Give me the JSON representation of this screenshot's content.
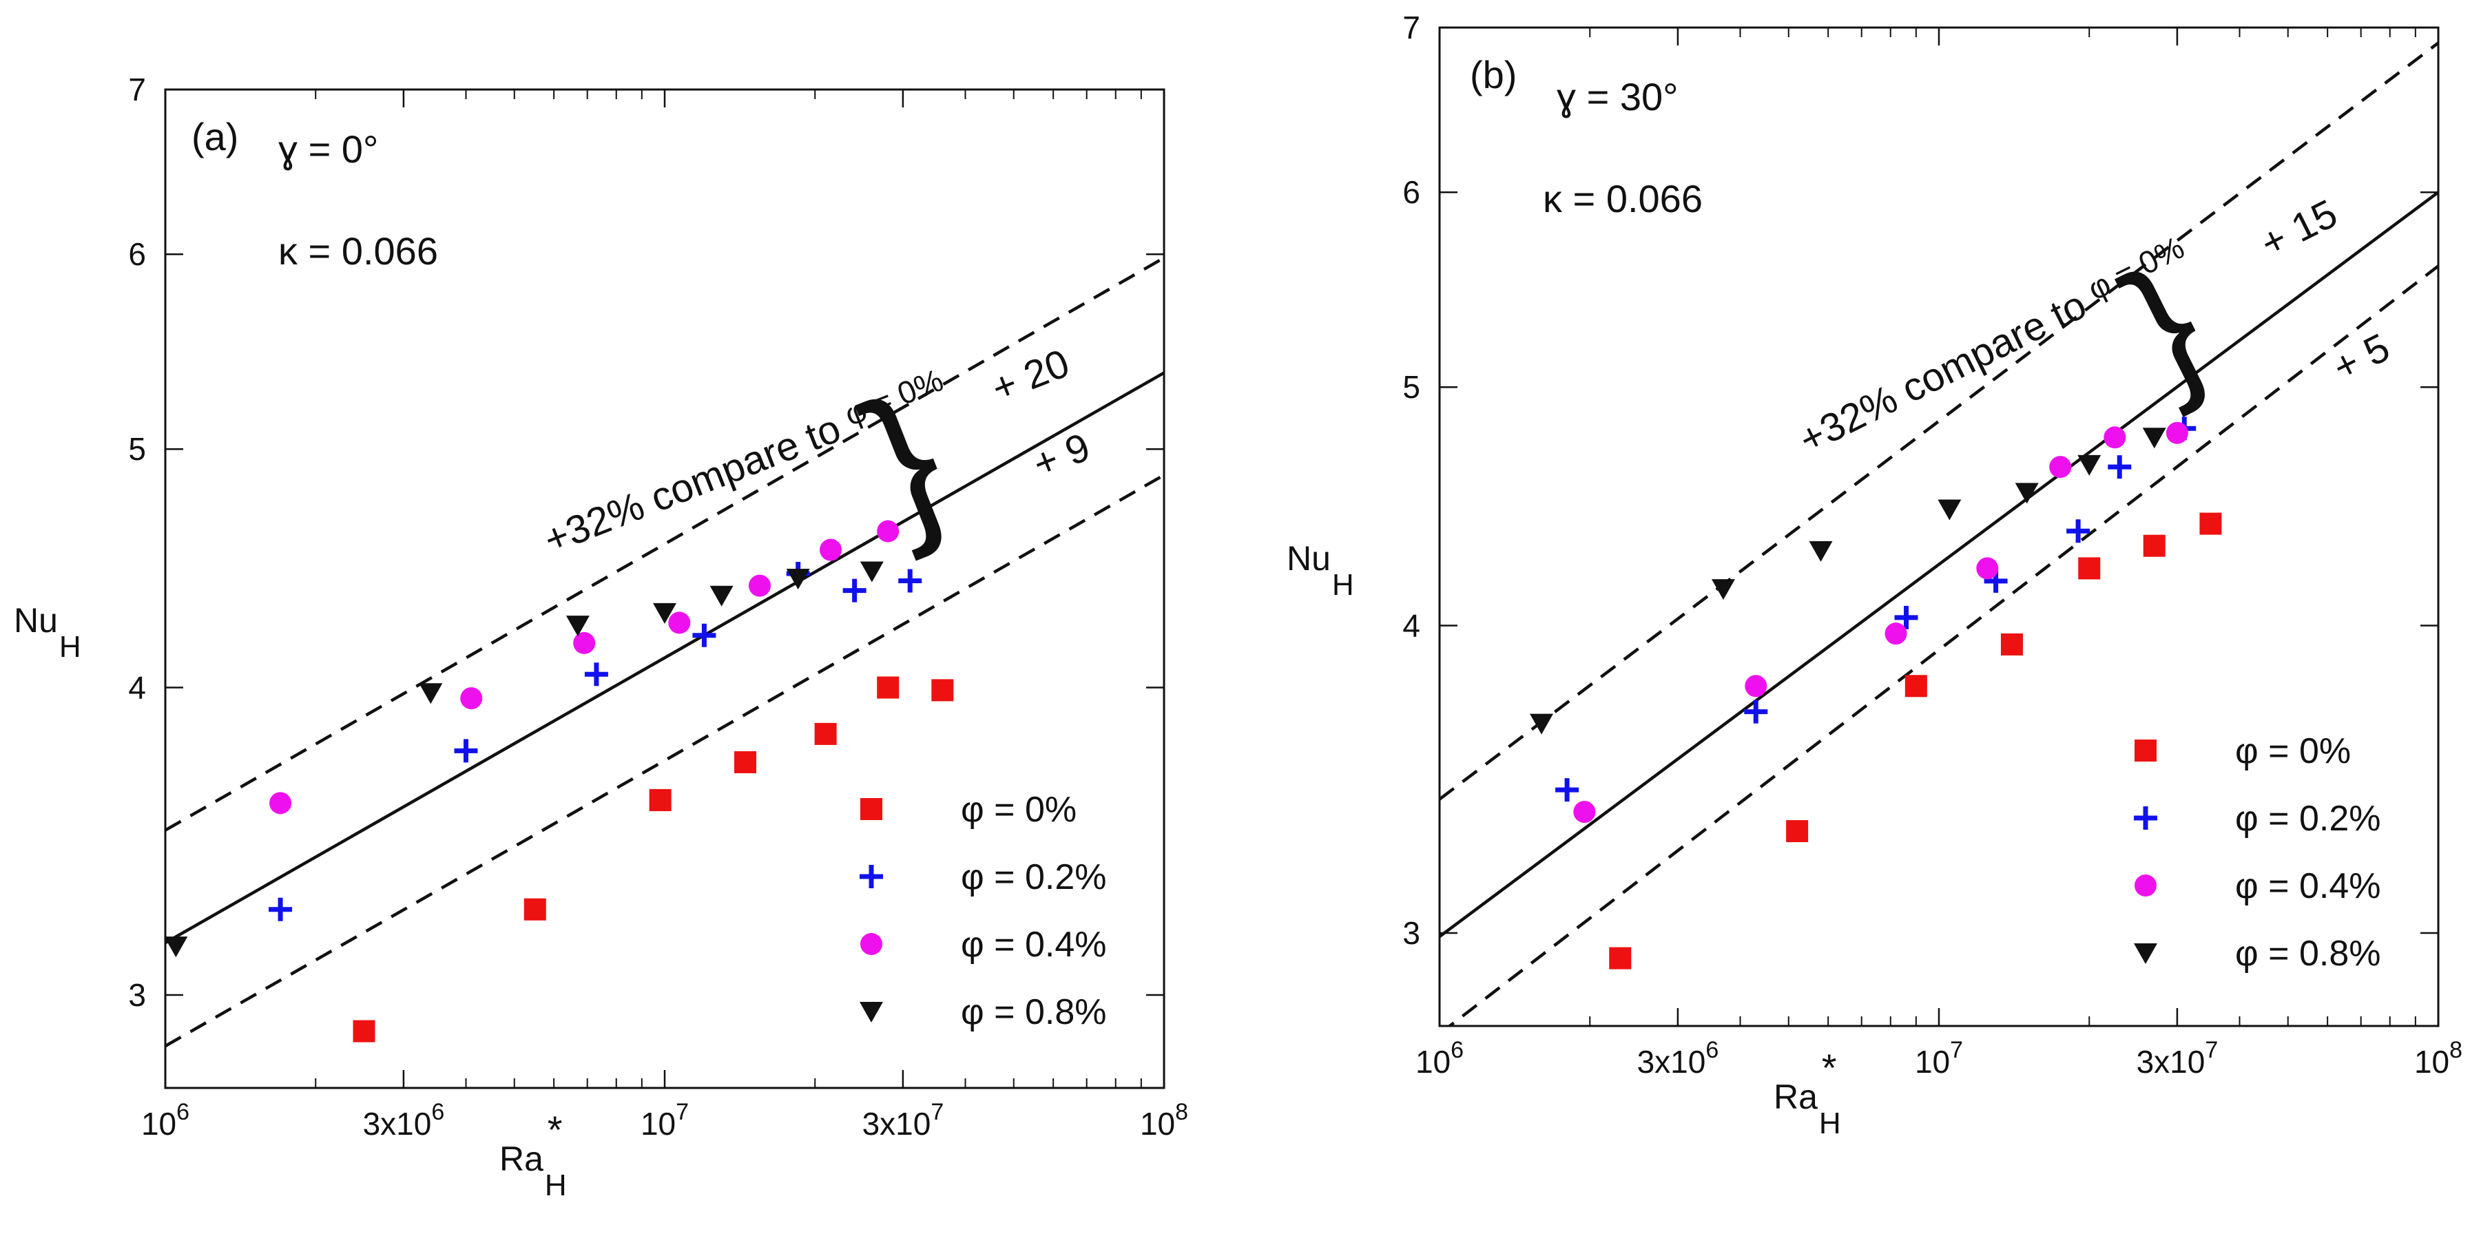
{
  "colors": {
    "phi_0": "#ee1111",
    "phi_0_2": "#1111ee",
    "phi_0_4": "#ee11ee",
    "phi_0_8": "#111111",
    "axes": "#111111"
  },
  "chart_data": [
    {
      "type": "scatter",
      "panel_label": "(a)",
      "angle_label": "ɣ = 0°",
      "kappa_label": "κ = 0.066",
      "xlabel": "Ra",
      "xlabel_sub": "H",
      "xlabel_sup": "*",
      "ylabel": "Nu",
      "ylabel_sub": "H",
      "x_scale": "log",
      "y_scale": "log",
      "xlim": [
        1000000,
        100000000
      ],
      "ylim": [
        2.75,
        7
      ],
      "x_ticks": [
        {
          "value": 1000000,
          "base": "10",
          "exp": "6"
        },
        {
          "value": 3000000,
          "base": "3x10",
          "exp": "6"
        },
        {
          "value": 10000000,
          "base": "10",
          "exp": "7"
        },
        {
          "value": 30000000,
          "base": "3x10",
          "exp": "7"
        },
        {
          "value": 100000000,
          "base": "10",
          "exp": "8"
        }
      ],
      "y_ticks": [
        {
          "value": 3,
          "label": "3"
        },
        {
          "value": 4,
          "label": "4"
        },
        {
          "value": 5,
          "label": "5"
        },
        {
          "value": 6,
          "label": "6"
        },
        {
          "value": 7,
          "label": "7"
        }
      ],
      "series": [
        {
          "name": "φ = 0%",
          "marker": "square",
          "color_key": "phi_0",
          "points": [
            [
              2500000,
              2.9
            ],
            [
              5500000,
              3.25
            ],
            [
              9800000,
              3.6
            ],
            [
              14500000,
              3.73
            ],
            [
              21000000,
              3.83
            ],
            [
              28000000,
              4.0
            ],
            [
              36000000,
              3.99
            ]
          ]
        },
        {
          "name": "φ = 0.2%",
          "marker": "plus",
          "color_key": "phi_0_2",
          "points": [
            [
              1700000,
              3.25
            ],
            [
              4000000,
              3.77
            ],
            [
              7300000,
              4.05
            ],
            [
              12000000,
              4.2
            ],
            [
              18500000,
              4.45
            ],
            [
              24000000,
              4.38
            ],
            [
              31000000,
              4.42
            ]
          ]
        },
        {
          "name": "φ = 0.4%",
          "marker": "circle",
          "color_key": "phi_0_4",
          "points": [
            [
              1700000,
              3.59
            ],
            [
              4100000,
              3.96
            ],
            [
              6900000,
              4.17
            ],
            [
              10700000,
              4.25
            ],
            [
              15500000,
              4.4
            ],
            [
              21500000,
              4.55
            ],
            [
              28000000,
              4.63
            ]
          ]
        },
        {
          "name": "φ = 0.8%",
          "marker": "triangle-down",
          "color_key": "phi_0_8",
          "points": [
            [
              1050000,
              3.14
            ],
            [
              3400000,
              3.98
            ],
            [
              6700000,
              4.24
            ],
            [
              10000000,
              4.29
            ],
            [
              13000000,
              4.36
            ],
            [
              18500000,
              4.43
            ],
            [
              26000000,
              4.46
            ]
          ]
        }
      ],
      "fit_lines": [
        {
          "name": "fit",
          "style": "solid",
          "x": [
            1000000,
            100000000
          ],
          "y": [
            3.15,
            5.37
          ]
        },
        {
          "name": "upper bound",
          "style": "dashed",
          "x": [
            1000000,
            100000000
          ],
          "y": [
            3.5,
            5.98
          ]
        },
        {
          "name": "lower bound",
          "style": "dashed",
          "x": [
            1000000,
            100000000
          ],
          "y": [
            2.86,
            4.88
          ]
        }
      ],
      "annotations": {
        "upper_prefix": "+32% compare to ",
        "upper_suffix": "φ = 0%",
        "plus_top": "+ 20",
        "plus_bottom": "+ 9"
      },
      "legend": {
        "position": "bottom-right",
        "entries": [
          "φ = 0%",
          "φ = 0.2%",
          "φ = 0.4%",
          "φ = 0.8%"
        ]
      }
    },
    {
      "type": "scatter",
      "panel_label": "(b)",
      "angle_label": "ɣ = 30°",
      "kappa_label": "κ = 0.066",
      "xlabel": "Ra",
      "xlabel_sub": "H",
      "xlabel_sup": "*",
      "ylabel": "Nu",
      "ylabel_sub": "H",
      "x_scale": "log",
      "y_scale": "log",
      "xlim": [
        1000000,
        100000000
      ],
      "ylim": [
        2.75,
        7
      ],
      "x_ticks": [
        {
          "value": 1000000,
          "base": "10",
          "exp": "6"
        },
        {
          "value": 3000000,
          "base": "3x10",
          "exp": "6"
        },
        {
          "value": 10000000,
          "base": "10",
          "exp": "7"
        },
        {
          "value": 30000000,
          "base": "3x10",
          "exp": "7"
        },
        {
          "value": 100000000,
          "base": "10",
          "exp": "8"
        }
      ],
      "y_ticks": [
        {
          "value": 3,
          "label": "3"
        },
        {
          "value": 4,
          "label": "4"
        },
        {
          "value": 5,
          "label": "5"
        },
        {
          "value": 6,
          "label": "6"
        },
        {
          "value": 7,
          "label": "7"
        }
      ],
      "series": [
        {
          "name": "φ = 0%",
          "marker": "square",
          "color_key": "phi_0",
          "points": [
            [
              2300000,
              2.93
            ],
            [
              5200000,
              3.3
            ],
            [
              9000000,
              3.78
            ],
            [
              14000000,
              3.93
            ],
            [
              20000000,
              4.22
            ],
            [
              27000000,
              4.31
            ],
            [
              35000000,
              4.4
            ]
          ]
        },
        {
          "name": "φ = 0.2%",
          "marker": "plus",
          "color_key": "phi_0_2",
          "points": [
            [
              1800000,
              3.43
            ],
            [
              4300000,
              3.69
            ],
            [
              8600000,
              4.03
            ],
            [
              13000000,
              4.17
            ],
            [
              19000000,
              4.37
            ],
            [
              23000000,
              4.64
            ],
            [
              31000000,
              4.81
            ]
          ]
        },
        {
          "name": "φ = 0.4%",
          "marker": "circle",
          "color_key": "phi_0_4",
          "points": [
            [
              1950000,
              3.36
            ],
            [
              4300000,
              3.78
            ],
            [
              8200000,
              3.97
            ],
            [
              12500000,
              4.22
            ],
            [
              17500000,
              4.64
            ],
            [
              22500000,
              4.77
            ],
            [
              30000000,
              4.79
            ]
          ]
        },
        {
          "name": "φ = 0.8%",
          "marker": "triangle-down",
          "color_key": "phi_0_8",
          "points": [
            [
              1600000,
              3.65
            ],
            [
              3700000,
              4.14
            ],
            [
              5800000,
              4.29
            ],
            [
              10500000,
              4.46
            ],
            [
              15000000,
              4.53
            ],
            [
              20000000,
              4.65
            ],
            [
              27000000,
              4.77
            ]
          ]
        }
      ],
      "fit_lines": [
        {
          "name": "fit",
          "style": "solid",
          "x": [
            1000000,
            100000000
          ],
          "y": [
            2.99,
            6.0
          ]
        },
        {
          "name": "upper bound",
          "style": "dashed",
          "x": [
            1000000,
            100000000
          ],
          "y": [
            3.4,
            6.9
          ]
        },
        {
          "name": "lower bound",
          "style": "dashed",
          "x": [
            1000000,
            100000000
          ],
          "y": [
            2.73,
            5.6
          ]
        }
      ],
      "annotations": {
        "upper_prefix": "+32% compare to ",
        "upper_suffix": "φ = 0%",
        "plus_top": "+ 15",
        "plus_bottom": "+ 5"
      },
      "legend": {
        "position": "bottom-right",
        "entries": [
          "φ = 0%",
          "φ = 0.2%",
          "φ = 0.4%",
          "φ = 0.8%"
        ]
      }
    }
  ]
}
